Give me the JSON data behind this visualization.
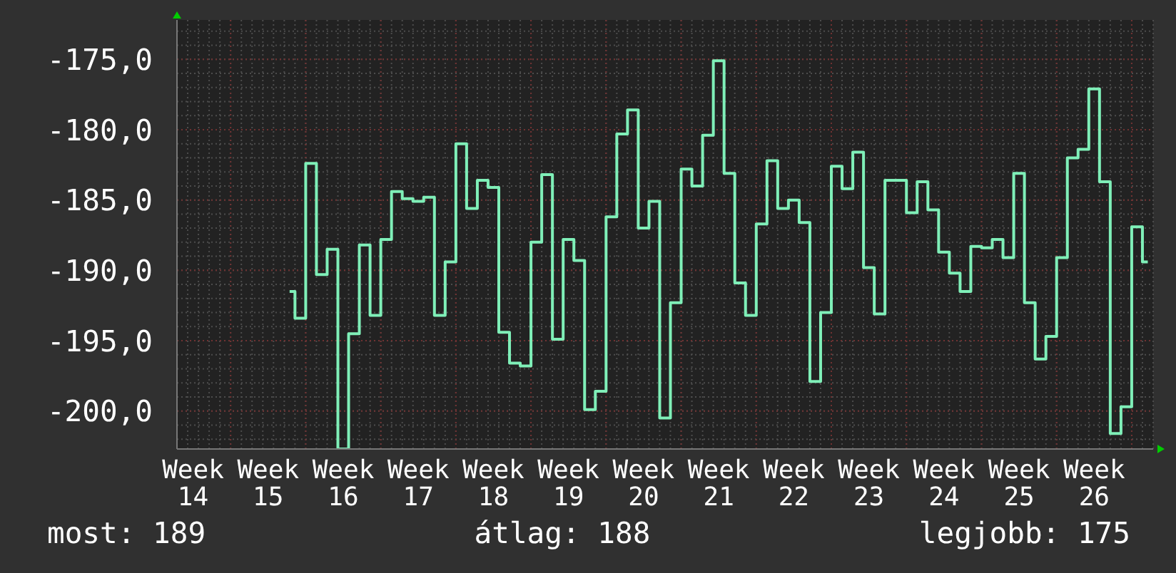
{
  "chart_data": {
    "type": "step",
    "annotations": [
      "most: 189",
      "átlag: 188",
      "legjobb: 175"
    ],
    "categories": [
      null,
      "Week 14",
      null,
      null,
      null,
      null,
      null,
      null,
      "Week 15",
      null,
      null,
      null,
      null,
      null,
      null,
      "Week 16",
      null,
      null,
      null,
      null,
      null,
      null,
      "Week 17",
      null,
      null,
      null,
      null,
      null,
      null,
      "Week 18",
      null,
      null,
      null,
      null,
      null,
      null,
      "Week 19",
      null,
      null,
      null,
      null,
      null,
      null,
      "Week 20",
      null,
      null,
      null,
      null,
      null,
      null,
      "Week 21",
      null,
      null,
      null,
      null,
      null,
      null,
      "Week 22",
      null,
      null,
      null,
      null,
      null,
      null,
      "Week 23",
      null,
      null,
      null,
      null,
      null,
      null,
      "Week 24",
      null,
      null,
      null,
      null,
      null,
      null,
      "Week 25",
      null,
      null,
      null,
      null,
      null,
      null,
      "Week 26",
      null,
      null,
      null,
      null,
      null
    ],
    "values": [
      null,
      null,
      null,
      null,
      null,
      null,
      null,
      null,
      null,
      null,
      -191.5,
      -193.4,
      -182.4,
      -190.3,
      -188.5,
      -202.7,
      -194.5,
      -188.2,
      -193.2,
      -187.8,
      -184.4,
      -184.9,
      -185.1,
      -184.8,
      -193.2,
      -189.4,
      -181.0,
      -185.6,
      -183.6,
      -184.1,
      -194.4,
      -196.6,
      -196.8,
      -188.0,
      -183.2,
      -194.9,
      -187.8,
      -189.3,
      -199.9,
      -198.6,
      -186.2,
      -180.3,
      -178.6,
      -187.0,
      -185.1,
      -200.5,
      -192.3,
      -182.8,
      -184.0,
      -180.4,
      -175.1,
      -183.1,
      -190.9,
      -193.2,
      -186.7,
      -182.2,
      -185.6,
      -185.0,
      -186.6,
      -197.9,
      -193.0,
      -182.6,
      -184.2,
      -181.6,
      -189.8,
      -193.1,
      -183.6,
      -183.6,
      -185.9,
      -183.7,
      -185.7,
      -188.7,
      -190.2,
      -191.5,
      -188.3,
      -188.4,
      -187.8,
      -189.1,
      -183.1,
      -192.3,
      -196.3,
      -194.7,
      -189.1,
      -182.0,
      -181.4,
      -177.1,
      -183.7,
      -201.6,
      -199.7,
      -186.9,
      -189.4
    ],
    "color": "#7fefb8",
    "line_style": "solid",
    "ylim": [
      -202.7,
      -172.2
    ],
    "yticks": [
      {
        "value": -200,
        "label": "-200,0"
      },
      {
        "value": -195,
        "label": "-195,0"
      },
      {
        "value": -190,
        "label": "-190,0"
      },
      {
        "value": -185,
        "label": "-185,0"
      },
      {
        "value": -180,
        "label": "-180,0"
      },
      {
        "value": -175,
        "label": "-175,0"
      }
    ],
    "grid": true
  }
}
